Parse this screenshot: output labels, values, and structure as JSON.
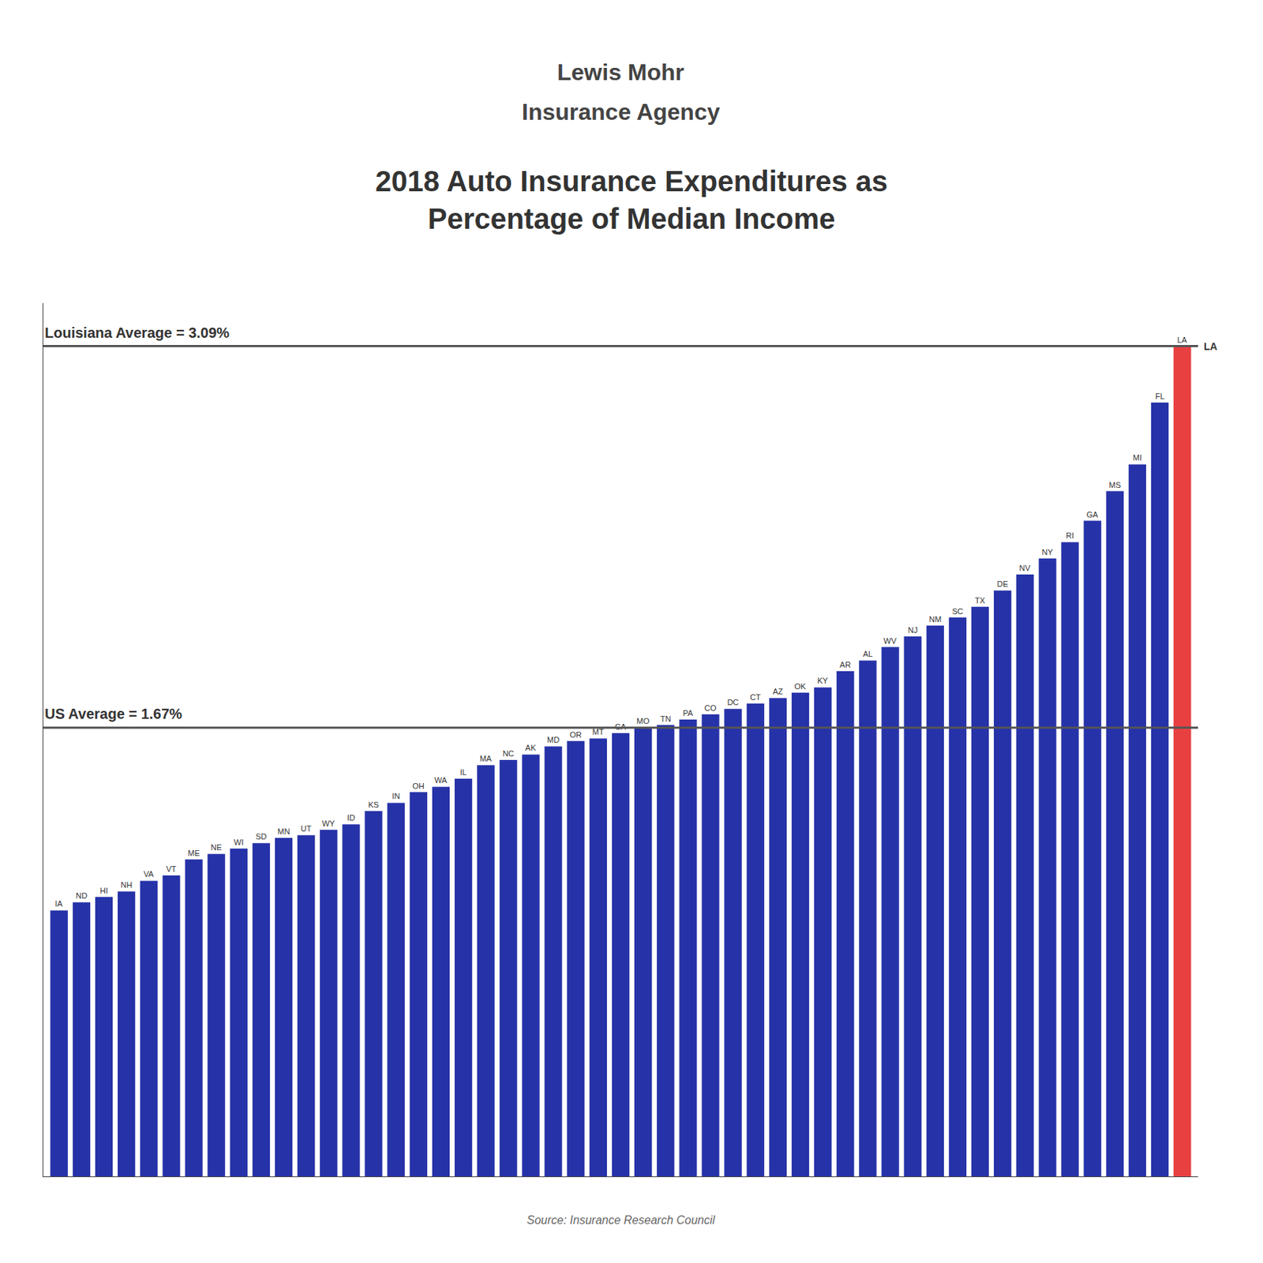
{
  "chart_data": {
    "type": "bar",
    "title": "2018 Auto Insurance Expenditures as\nPercentage of Median Income",
    "categories": [
      "IA",
      "ND",
      "HI",
      "NH",
      "VA",
      "VT",
      "ME",
      "NE",
      "WI",
      "SD",
      "MN",
      "UT",
      "WY",
      "ID",
      "KS",
      "IN",
      "OH",
      "WA",
      "IL",
      "MA",
      "NC",
      "AK",
      "MD",
      "OR",
      "MT",
      "CA",
      "MO",
      "TN",
      "PA",
      "CO",
      "DC",
      "CT",
      "AZ",
      "OK",
      "KY",
      "AR",
      "AL",
      "WV",
      "NJ",
      "NM",
      "SC",
      "TX",
      "DE",
      "NV",
      "NY",
      "RI",
      "GA",
      "MS",
      "MI",
      "FL",
      "LA"
    ],
    "values": [
      0.99,
      1.02,
      1.04,
      1.06,
      1.1,
      1.12,
      1.18,
      1.2,
      1.22,
      1.24,
      1.26,
      1.27,
      1.29,
      1.31,
      1.36,
      1.39,
      1.43,
      1.45,
      1.48,
      1.53,
      1.55,
      1.57,
      1.6,
      1.62,
      1.63,
      1.65,
      1.67,
      1.68,
      1.7,
      1.72,
      1.74,
      1.76,
      1.78,
      1.8,
      1.82,
      1.88,
      1.92,
      1.97,
      2.01,
      2.05,
      2.08,
      2.12,
      2.18,
      2.24,
      2.3,
      2.36,
      2.44,
      2.55,
      2.65,
      2.88,
      3.09
    ],
    "colors": [
      "#2632a8",
      "#2632a8",
      "#2632a8",
      "#2632a8",
      "#2632a8",
      "#2632a8",
      "#2632a8",
      "#2632a8",
      "#2632a8",
      "#2632a8",
      "#2632a8",
      "#2632a8",
      "#2632a8",
      "#2632a8",
      "#2632a8",
      "#2632a8",
      "#2632a8",
      "#2632a8",
      "#2632a8",
      "#2632a8",
      "#2632a8",
      "#2632a8",
      "#2632a8",
      "#2632a8",
      "#2632a8",
      "#2632a8",
      "#2632a8",
      "#2632a8",
      "#2632a8",
      "#2632a8",
      "#2632a8",
      "#2632a8",
      "#2632a8",
      "#2632a8",
      "#2632a8",
      "#2632a8",
      "#2632a8",
      "#2632a8",
      "#2632a8",
      "#2632a8",
      "#2632a8",
      "#2632a8",
      "#2632a8",
      "#2632a8",
      "#2632a8",
      "#2632a8",
      "#2632a8",
      "#2632a8",
      "#2632a8",
      "#2632a8",
      "#e84040"
    ],
    "ylim": [
      0,
      3.25
    ],
    "tick_labels": false,
    "grid": false,
    "data_labels": false,
    "annotations": [
      {
        "text": "Lewis Mohr"
      },
      {
        "text": "Insurance Agency"
      },
      {
        "text": "US Average = 1.67%",
        "y": 1.67
      },
      {
        "text": "Louisiana Average = 3.09%",
        "y": 3.09
      },
      {
        "text": "LA",
        "y": 3.09,
        "side": "right"
      },
      {
        "text": "Source: Insurance Research Council"
      }
    ]
  }
}
